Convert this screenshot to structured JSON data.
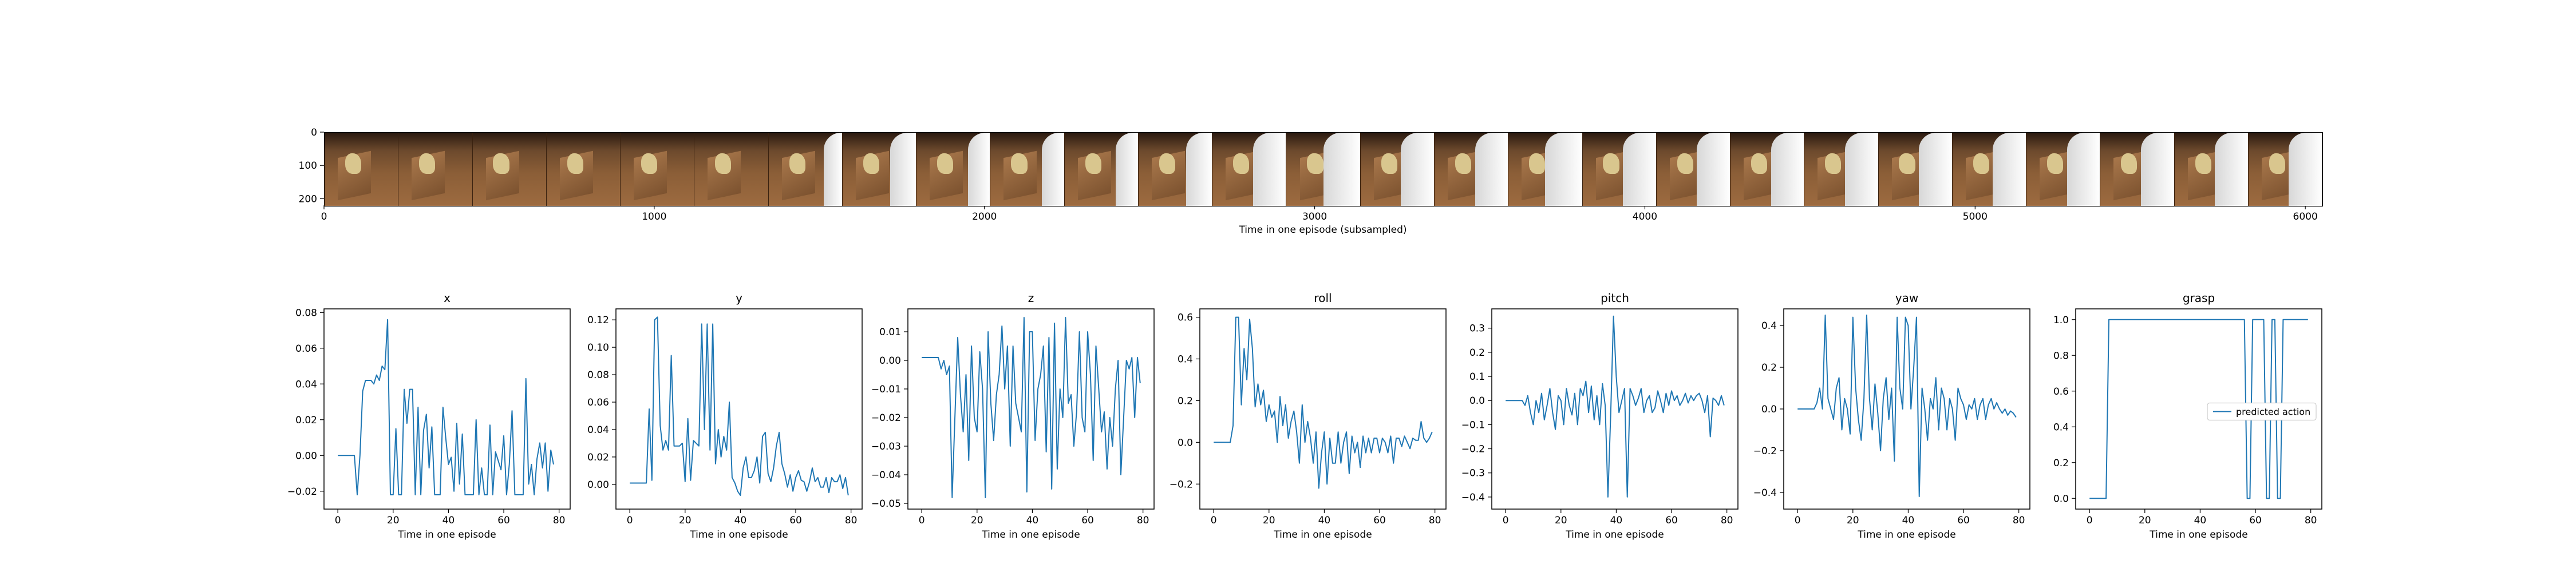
{
  "strip": {
    "xlabel": "Time in one episode (subsampled)",
    "x_ticks": [
      "0",
      "1000",
      "2000",
      "3000",
      "4000",
      "5000",
      "6000"
    ],
    "y_ticks": [
      "0",
      "100",
      "200"
    ],
    "frame_count": 27,
    "arm_presence": [
      0,
      0,
      0,
      0,
      0,
      0,
      0.25,
      0.35,
      0.3,
      0.3,
      0.3,
      0.35,
      0.45,
      0.5,
      0.45,
      0.45,
      0.5,
      0.45,
      0.45,
      0.45,
      0.45,
      0.45,
      0.45,
      0.45,
      0.45,
      0.45,
      0.45
    ]
  },
  "chart_data": [
    {
      "type": "line",
      "title": "x",
      "xlabel": "Time in one episode",
      "ylabel": "",
      "xlim": [
        -5,
        84
      ],
      "ylim": [
        -0.03,
        0.082
      ],
      "x_ticks": [
        0,
        20,
        40,
        60,
        80
      ],
      "y_ticks": [
        -0.02,
        0,
        0.02,
        0.04,
        0.06,
        0.08
      ],
      "y_tick_labels": [
        "−0.02",
        "0.00",
        "0.02",
        "0.04",
        "0.06",
        "0.08"
      ],
      "values": [
        0,
        0,
        0,
        0,
        0,
        0,
        0,
        -0.022,
        0,
        0.036,
        0.042,
        0.042,
        0.042,
        0.04,
        0.045,
        0.042,
        0.05,
        0.048,
        0.076,
        -0.022,
        -0.022,
        0.015,
        -0.022,
        -0.022,
        0.037,
        0.018,
        0.037,
        0.037,
        -0.022,
        0.027,
        -0.022,
        0.014,
        0.023,
        -0.007,
        0.016,
        -0.022,
        -0.022,
        -0.022,
        0.027,
        0.01,
        -0.005,
        -0.001,
        -0.02,
        0.018,
        -0.016,
        0.012,
        -0.022,
        -0.022,
        -0.022,
        -0.022,
        0.02,
        -0.022,
        -0.007,
        -0.022,
        -0.022,
        0.017,
        -0.022,
        0.002,
        -0.003,
        -0.008,
        0.011,
        -0.022,
        -0.005,
        0.025,
        -0.022,
        -0.022,
        -0.022,
        -0.022,
        0.043,
        -0.016,
        -0.005,
        -0.022,
        -0.002,
        0.007,
        -0.007,
        0.007,
        -0.02,
        0.003,
        -0.005
      ]
    },
    {
      "type": "line",
      "title": "y",
      "xlabel": "Time in one episode",
      "ylabel": "",
      "xlim": [
        -5,
        84
      ],
      "ylim": [
        -0.018,
        0.128
      ],
      "x_ticks": [
        0,
        20,
        40,
        60,
        80
      ],
      "y_ticks": [
        0,
        0.02,
        0.04,
        0.06,
        0.08,
        0.1,
        0.12
      ],
      "y_tick_labels": [
        "0.00",
        "0.02",
        "0.04",
        "0.06",
        "0.08",
        "0.10",
        "0.12"
      ],
      "values": [
        0.001,
        0.001,
        0.001,
        0.001,
        0.001,
        0.001,
        0.001,
        0.055,
        0.003,
        0.12,
        0.122,
        0.043,
        0.025,
        0.032,
        0.025,
        0.094,
        0.028,
        0.028,
        0.028,
        0.03,
        0.002,
        0.048,
        0.003,
        0.032,
        0.03,
        0.028,
        0.117,
        0.04,
        0.117,
        0.025,
        0.117,
        0.015,
        0.04,
        0.02,
        0.035,
        0.025,
        0.06,
        0.005,
        0.001,
        -0.005,
        -0.008,
        0.012,
        0.02,
        0.005,
        0.005,
        0.01,
        0.02,
        0.001,
        0.035,
        0.038,
        0.008,
        0.002,
        0.012,
        0.028,
        0.038,
        0.015,
        0.008,
        -0.002,
        0.007,
        -0.005,
        0.005,
        0.01,
        0.003,
        0.002,
        -0.005,
        0.002,
        0.012,
        0.002,
        0.005,
        -0.002,
        -0.002,
        0.005,
        -0.006,
        0.005,
        0.002,
        0.002,
        0.007,
        -0.003,
        0.005,
        -0.008
      ]
    },
    {
      "type": "line",
      "title": "z",
      "xlabel": "Time in one episode",
      "ylabel": "",
      "xlim": [
        -5,
        84
      ],
      "ylim": [
        -0.052,
        0.018
      ],
      "x_ticks": [
        0,
        20,
        40,
        60,
        80
      ],
      "y_ticks": [
        -0.05,
        -0.04,
        -0.03,
        -0.02,
        -0.01,
        0,
        0.01
      ],
      "y_tick_labels": [
        "−0.05",
        "−0.04",
        "−0.03",
        "−0.02",
        "−0.01",
        "0.00",
        "0.01"
      ],
      "values": [
        0.001,
        0.001,
        0.001,
        0.001,
        0.001,
        0.001,
        0.001,
        -0.003,
        0,
        -0.005,
        -0.002,
        -0.048,
        -0.02,
        0.008,
        -0.012,
        -0.025,
        -0.005,
        -0.035,
        0.005,
        -0.02,
        -0.025,
        0.003,
        -0.01,
        -0.048,
        0.01,
        -0.015,
        -0.028,
        -0.012,
        -0.005,
        0.012,
        -0.01,
        0.005,
        -0.03,
        0.005,
        -0.015,
        -0.02,
        -0.025,
        0.015,
        -0.046,
        0.01,
        0.01,
        -0.028,
        -0.01,
        -0.005,
        0.005,
        -0.032,
        0.008,
        -0.045,
        0.013,
        -0.038,
        -0.01,
        -0.02,
        0.015,
        -0.015,
        -0.012,
        -0.03,
        -0.018,
        0.01,
        -0.02,
        -0.025,
        0.01,
        -0.005,
        -0.035,
        0.005,
        -0.01,
        -0.025,
        -0.018,
        -0.038,
        -0.02,
        -0.03,
        -0.01,
        0.0,
        -0.04,
        -0.02,
        0.0,
        -0.003,
        0.001,
        -0.02,
        0.001,
        -0.008
      ]
    },
    {
      "type": "line",
      "title": "roll",
      "xlabel": "Time in one episode",
      "ylabel": "",
      "xlim": [
        -5,
        84
      ],
      "ylim": [
        -0.32,
        0.64
      ],
      "x_ticks": [
        0,
        20,
        40,
        60,
        80
      ],
      "y_ticks": [
        -0.2,
        0,
        0.2,
        0.4,
        0.6
      ],
      "y_tick_labels": [
        "−0.2",
        "0.0",
        "0.2",
        "0.4",
        "0.6"
      ],
      "values": [
        0,
        0,
        0,
        0,
        0,
        0,
        0,
        0.08,
        0.6,
        0.6,
        0.18,
        0.45,
        0.3,
        0.59,
        0.45,
        0.17,
        0.28,
        0.18,
        0.25,
        0.1,
        0.18,
        0.12,
        0.15,
        0.0,
        0.22,
        0.08,
        0.18,
        0.02,
        0.1,
        0.15,
        0.05,
        -0.1,
        0.18,
        0.0,
        0.1,
        0.02,
        -0.1,
        0.05,
        -0.22,
        -0.05,
        0.05,
        -0.2,
        0.02,
        -0.1,
        -0.1,
        0.05,
        -0.1,
        0.0,
        0.05,
        -0.15,
        0.03,
        -0.05,
        0.0,
        -0.12,
        0.03,
        -0.05,
        0.02,
        -0.05,
        0.02,
        0.02,
        -0.05,
        0.02,
        0.0,
        -0.05,
        0.03,
        -0.1,
        0.02,
        0.02,
        -0.02,
        0.03,
        0.0,
        -0.03,
        0.02,
        0.01,
        0.01,
        0.1,
        0.02,
        0.0,
        0.02,
        0.05
      ]
    },
    {
      "type": "line",
      "title": "pitch",
      "xlabel": "Time in one episode",
      "ylabel": "",
      "xlim": [
        -5,
        84
      ],
      "ylim": [
        -0.45,
        0.38
      ],
      "x_ticks": [
        0,
        20,
        40,
        60,
        80
      ],
      "y_ticks": [
        -0.4,
        -0.3,
        -0.2,
        -0.1,
        0,
        0.1,
        0.2,
        0.3
      ],
      "y_tick_labels": [
        "−0.4",
        "−0.3",
        "−0.2",
        "−0.1",
        "0.0",
        "0.1",
        "0.2",
        "0.3"
      ],
      "values": [
        0,
        0,
        0,
        0,
        0,
        0,
        0,
        -0.02,
        0.02,
        -0.05,
        -0.1,
        0.0,
        -0.05,
        0.03,
        -0.08,
        -0.02,
        0.05,
        -0.05,
        -0.12,
        0.02,
        0.0,
        -0.1,
        0.05,
        -0.02,
        -0.06,
        0.03,
        -0.1,
        0.05,
        0.02,
        0.08,
        -0.05,
        0.06,
        -0.08,
        0.02,
        -0.1,
        0.07,
        -0.02,
        -0.4,
        -0.05,
        0.35,
        0.1,
        -0.05,
        0.0,
        0.05,
        -0.4,
        0.05,
        0.02,
        -0.02,
        0.01,
        0.05,
        -0.05,
        0.0,
        0.02,
        -0.05,
        -0.03,
        0.04,
        0.0,
        -0.05,
        0.03,
        -0.02,
        0.04,
        0.0,
        0.02,
        -0.02,
        0.0,
        0.03,
        -0.01,
        0.02,
        0.0,
        0.02,
        0.03,
        0.0,
        -0.05,
        0.02,
        -0.15,
        0.01,
        0.0,
        -0.02,
        0.02,
        -0.02
      ]
    },
    {
      "type": "line",
      "title": "yaw",
      "xlabel": "Time in one episode",
      "ylabel": "",
      "xlim": [
        -5,
        84
      ],
      "ylim": [
        -0.48,
        0.48
      ],
      "x_ticks": [
        0,
        20,
        40,
        60,
        80
      ],
      "y_ticks": [
        -0.4,
        -0.2,
        0,
        0.2,
        0.4
      ],
      "y_tick_labels": [
        "−0.4",
        "−0.2",
        "0.0",
        "0.2",
        "0.4"
      ],
      "values": [
        0,
        0,
        0,
        0,
        0,
        0,
        0,
        0.03,
        0.1,
        0.0,
        0.45,
        0.05,
        0.0,
        -0.05,
        0.1,
        0.15,
        -0.1,
        0.05,
        0.0,
        -0.12,
        0.44,
        0.1,
        -0.05,
        -0.15,
        0.05,
        0.45,
        0.05,
        -0.1,
        0.12,
        -0.02,
        -0.2,
        0.05,
        0.15,
        -0.05,
        0.1,
        -0.25,
        0.44,
        0.1,
        0.0,
        0.44,
        0.4,
        0.0,
        0.2,
        0.44,
        -0.42,
        0.1,
        0.0,
        -0.15,
        0.05,
        0.0,
        0.15,
        -0.1,
        0.1,
        0.05,
        -0.1,
        0.05,
        0.0,
        -0.15,
        0.1,
        0.05,
        0.02,
        -0.05,
        0.02,
        0.0,
        0.05,
        -0.05,
        0.02,
        0.05,
        -0.05,
        0.02,
        0.05,
        0.0,
        0.03,
        0.0,
        -0.02,
        0.0,
        -0.03,
        -0.01,
        -0.02,
        -0.04
      ]
    },
    {
      "type": "line",
      "title": "grasp",
      "xlabel": "Time in one episode",
      "ylabel": "",
      "xlim": [
        -5,
        84
      ],
      "ylim": [
        -0.06,
        1.06
      ],
      "x_ticks": [
        0,
        20,
        40,
        60,
        80
      ],
      "y_ticks": [
        0,
        0.2,
        0.4,
        0.6,
        0.8,
        1.0
      ],
      "y_tick_labels": [
        "0.0",
        "0.2",
        "0.4",
        "0.6",
        "0.8",
        "1.0"
      ],
      "legend": {
        "label": "predicted action",
        "placement": "center-right"
      },
      "values": [
        0,
        0,
        0,
        0,
        0,
        0,
        0,
        1,
        1,
        1,
        1,
        1,
        1,
        1,
        1,
        1,
        1,
        1,
        1,
        1,
        1,
        1,
        1,
        1,
        1,
        1,
        1,
        1,
        1,
        1,
        1,
        1,
        1,
        1,
        1,
        1,
        1,
        1,
        1,
        1,
        1,
        1,
        1,
        1,
        1,
        1,
        1,
        1,
        1,
        1,
        1,
        1,
        1,
        1,
        1,
        1,
        1,
        0,
        0,
        1,
        1,
        1,
        1,
        1,
        0,
        0,
        1,
        1,
        0,
        0,
        1,
        1,
        1,
        1,
        1,
        1,
        1,
        1,
        1,
        1
      ]
    }
  ],
  "colors": {
    "line": "#1f77b4",
    "axes": "#000000",
    "text": "#000000"
  }
}
